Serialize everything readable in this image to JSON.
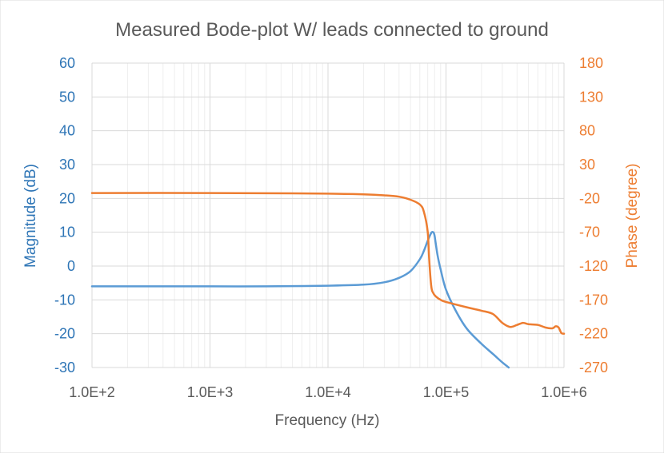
{
  "chart_data": {
    "type": "line",
    "title": "Measured Bode-plot W/ leads connected to ground",
    "xlabel": "Frequency (Hz)",
    "ylabel_left": "Magnitude (dB)",
    "ylabel_right": "Phase (degree)",
    "x_scale": "log",
    "xlim": [
      100,
      1000000
    ],
    "x_ticks": [
      100,
      1000,
      10000,
      100000,
      1000000
    ],
    "x_tick_labels": [
      "1.0E+2",
      "1.0E+3",
      "1.0E+4",
      "1.0E+5",
      "1.0E+6"
    ],
    "ylim_left": [
      -30,
      60
    ],
    "y_ticks_left": [
      -30,
      -20,
      -10,
      0,
      10,
      20,
      30,
      40,
      50,
      60
    ],
    "y_tick_labels_left": [
      "-30",
      "-20",
      "-10",
      "0",
      "10",
      "20",
      "30",
      "40",
      "50",
      "60"
    ],
    "ylim_right": [
      -270,
      180
    ],
    "y_ticks_right": [
      -270,
      -220,
      -170,
      -120,
      -70,
      -20,
      30,
      80,
      130,
      180
    ],
    "y_tick_labels_right": [
      "-270",
      "-220",
      "-170",
      "-120",
      "-70",
      "-20",
      "30",
      "80",
      "130",
      "180"
    ],
    "grid": true,
    "legend": "none",
    "colors": {
      "magnitude": "#5b9bd5",
      "phase": "#ed7d31",
      "title": "#595959",
      "axis_left": "#2e75b6",
      "axis_right": "#ed7d31",
      "grid": "#d9d9d9"
    },
    "series": [
      {
        "axis": "left",
        "color": "#5b9bd5",
        "x": [
          100,
          300,
          1000,
          3000,
          10000,
          20000,
          30000,
          40000,
          50000,
          60000,
          65000,
          70000,
          75000,
          78000,
          80000,
          82000,
          85000,
          90000,
          100000,
          120000,
          150000,
          200000,
          250000,
          300000,
          340000
        ],
        "y": [
          -6,
          -6,
          -6,
          -6,
          -5.8,
          -5.5,
          -4.8,
          -3.5,
          -1.5,
          2,
          4.5,
          7.5,
          9.8,
          10,
          9,
          6.5,
          3,
          -1,
          -7,
          -13,
          -18.5,
          -23,
          -26,
          -28.5,
          -30
        ]
      },
      {
        "axis": "right",
        "color": "#ed7d31",
        "x": [
          100,
          1000,
          5000,
          10000,
          20000,
          30000,
          40000,
          50000,
          60000,
          65000,
          70000,
          72000,
          75000,
          78000,
          82000,
          90000,
          100000,
          150000,
          200000,
          250000,
          300000,
          350000,
          400000,
          450000,
          500000,
          600000,
          700000,
          800000,
          850000,
          900000,
          950000,
          1000000
        ],
        "y": [
          -12,
          -12,
          -12.5,
          -13,
          -14,
          -15.5,
          -17.5,
          -22,
          -29,
          -40,
          -70,
          -110,
          -150,
          -160,
          -165,
          -170,
          -173,
          -181,
          -186,
          -191,
          -204,
          -210,
          -207,
          -204,
          -206,
          -207,
          -211,
          -212,
          -209,
          -211,
          -219,
          -220
        ]
      }
    ]
  }
}
